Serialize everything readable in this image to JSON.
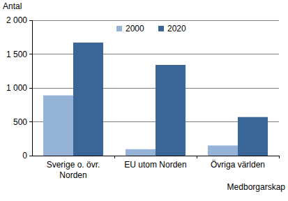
{
  "chart_data": {
    "type": "bar",
    "categories": [
      "Sverige o. övr. Norden",
      "EU utom Norden",
      "Övriga världen"
    ],
    "series": [
      {
        "name": "2000",
        "color": "#95b3d7",
        "values": [
          890,
          95,
          150
        ]
      },
      {
        "name": "2020",
        "color": "#3a6597",
        "values": [
          1670,
          1340,
          570
        ]
      }
    ],
    "y_label": "Antal",
    "x_label": "Medborgarskap",
    "ylim": [
      0,
      2000
    ],
    "yticks": [
      0,
      500,
      {
        "value": 1000,
        "label": "1 000"
      },
      {
        "value": 1500,
        "label": "1 500"
      },
      {
        "value": 2000,
        "label": "2 000"
      }
    ],
    "grid": true,
    "legend": "top"
  }
}
